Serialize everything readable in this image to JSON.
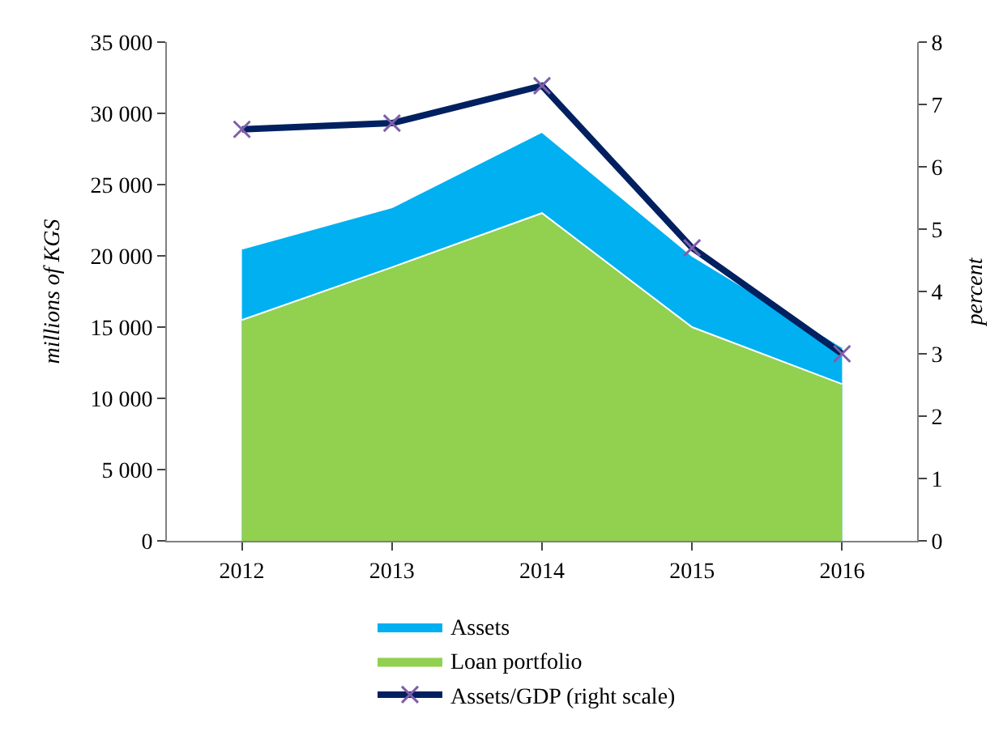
{
  "chart_data": {
    "type": "area",
    "ylabel": "millions of KGS",
    "y2label": "percent",
    "categories": [
      "2012",
      "2013",
      "2014",
      "2015",
      "2016"
    ],
    "series": [
      {
        "name": "Assets",
        "color": "#00b0f0",
        "values": [
          20500,
          23400,
          28700,
          20000,
          13600
        ]
      },
      {
        "name": "Loan portfolio",
        "color": "#92d050",
        "values": [
          15500,
          19200,
          23000,
          15000,
          11000
        ]
      },
      {
        "name": "Assets/GDP (right scale)",
        "type": "line",
        "axis": "y2",
        "color": "#002060",
        "marker": "cross",
        "values": [
          6.6,
          6.7,
          7.3,
          4.7,
          3.0
        ]
      }
    ],
    "ylim": [
      0,
      35000
    ],
    "yticks": [
      0,
      {
        "value": 5000,
        "label": "5 000"
      },
      {
        "value": 10000,
        "label": "10 000"
      },
      {
        "value": 15000,
        "label": "15 000"
      },
      {
        "value": 20000,
        "label": "20 000"
      },
      {
        "value": 25000,
        "label": "25 000"
      },
      {
        "value": 30000,
        "label": "30 000"
      },
      {
        "value": 35000,
        "label": "35 000"
      }
    ],
    "y2lim": [
      0,
      8
    ],
    "y2ticks": [
      0,
      1,
      2,
      3,
      4,
      5,
      6,
      7,
      8
    ],
    "legend": "bottom"
  }
}
